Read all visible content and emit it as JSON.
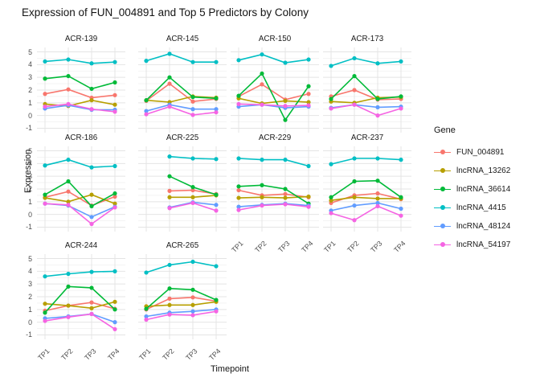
{
  "title": "Expression of FUN_004891 and Top 5 Predictors by Colony",
  "axes": {
    "x_title": "Timepoint",
    "y_title": "Expression",
    "x_tick_labels": [
      "TP1",
      "TP2",
      "TP3",
      "TP4"
    ],
    "y_tick_labels": [
      5,
      4,
      3,
      2,
      1,
      0,
      -1
    ]
  },
  "legend": {
    "title": "Gene",
    "entries": [
      {
        "label": "FUN_004891",
        "color": "#F8766D"
      },
      {
        "label": "lncRNA_13262",
        "color": "#B79F00"
      },
      {
        "label": "lncRNA_36614",
        "color": "#00BA38"
      },
      {
        "label": "lncRNA_4415",
        "color": "#00BFC4"
      },
      {
        "label": "lncRNA_48124",
        "color": "#619CFF"
      },
      {
        "label": "lncRNA_54197",
        "color": "#F564E3"
      }
    ]
  },
  "chart_data": {
    "type": "line",
    "title": "Expression of FUN_004891 and Top 5 Predictors by Colony",
    "xlabel": "Timepoint",
    "ylabel": "Expression",
    "x": [
      "TP1",
      "TP2",
      "TP3",
      "TP4"
    ],
    "ylim": [
      -1,
      5
    ],
    "grid": true,
    "legend_position": "right",
    "facet_variable": "Colony",
    "series_names": [
      "FUN_004891",
      "lncRNA_13262",
      "lncRNA_36614",
      "lncRNA_4415",
      "lncRNA_48124",
      "lncRNA_54197"
    ],
    "series_colors": [
      "#F8766D",
      "#B79F00",
      "#00BA38",
      "#00BFC4",
      "#619CFF",
      "#F564E3"
    ],
    "facets": [
      {
        "colony": "ACR-139",
        "values": [
          [
            1.7,
            2.05,
            1.4,
            1.6
          ],
          [
            0.9,
            0.75,
            1.2,
            0.85
          ],
          [
            2.9,
            3.1,
            2.1,
            2.6
          ],
          [
            4.25,
            4.4,
            4.1,
            4.2
          ],
          [
            0.55,
            0.8,
            0.45,
            0.45
          ],
          [
            0.7,
            0.9,
            0.5,
            0.3
          ]
        ]
      },
      {
        "colony": "ACR-145",
        "values": [
          [
            1.15,
            2.5,
            1.1,
            1.3
          ],
          [
            1.2,
            1.05,
            1.5,
            1.4
          ],
          [
            1.2,
            3.0,
            1.45,
            1.35
          ],
          [
            4.3,
            4.85,
            4.2,
            4.2
          ],
          [
            0.35,
            0.85,
            0.5,
            0.5
          ],
          [
            0.1,
            0.7,
            0.05,
            0.25
          ]
        ]
      },
      {
        "colony": "ACR-150",
        "values": [
          [
            1.5,
            2.45,
            1.25,
            1.7
          ],
          [
            1.35,
            0.95,
            1.15,
            1.05
          ],
          [
            1.55,
            3.3,
            -0.35,
            2.3
          ],
          [
            4.35,
            4.8,
            4.15,
            4.4
          ],
          [
            0.7,
            0.85,
            0.6,
            0.7
          ],
          [
            0.9,
            0.85,
            0.75,
            0.8
          ]
        ]
      },
      {
        "colony": "ACR-173",
        "values": [
          [
            1.5,
            2.0,
            1.25,
            1.3
          ],
          [
            1.1,
            1.0,
            1.4,
            1.45
          ],
          [
            1.3,
            3.1,
            1.3,
            1.5
          ],
          [
            3.9,
            4.5,
            4.1,
            4.25
          ],
          [
            0.6,
            0.85,
            0.65,
            0.7
          ],
          [
            0.55,
            0.85,
            0.0,
            0.55
          ]
        ]
      },
      {
        "colony": "ACR-186",
        "values": [
          [
            1.35,
            1.8,
            0.7,
            1.4
          ],
          [
            1.3,
            1.0,
            1.55,
            0.85
          ],
          [
            1.55,
            2.6,
            0.65,
            1.65
          ],
          [
            3.85,
            4.3,
            3.7,
            3.8
          ],
          [
            0.85,
            0.7,
            -0.2,
            0.6
          ],
          [
            0.85,
            0.75,
            -0.75,
            0.55
          ]
        ]
      },
      {
        "colony": "ACR-225",
        "values": [
          [
            null,
            1.85,
            1.9,
            1.6
          ],
          [
            null,
            1.35,
            1.35,
            1.5
          ],
          [
            null,
            3.0,
            2.15,
            1.55
          ],
          [
            null,
            4.55,
            4.4,
            4.35
          ],
          [
            null,
            0.55,
            0.95,
            0.75
          ],
          [
            null,
            0.5,
            0.9,
            0.3
          ]
        ]
      },
      {
        "colony": "ACR-229",
        "values": [
          [
            1.9,
            1.5,
            1.6,
            1.35
          ],
          [
            1.3,
            1.35,
            1.3,
            1.4
          ],
          [
            2.2,
            2.3,
            2.0,
            0.85
          ],
          [
            4.4,
            4.3,
            4.3,
            3.8
          ],
          [
            0.6,
            0.75,
            0.85,
            0.7
          ],
          [
            0.35,
            0.7,
            0.8,
            0.6
          ]
        ]
      },
      {
        "colony": "ACR-237",
        "values": [
          [
            0.9,
            1.5,
            1.65,
            1.2
          ],
          [
            1.1,
            1.35,
            1.25,
            1.25
          ],
          [
            1.35,
            2.6,
            2.65,
            1.35
          ],
          [
            3.95,
            4.4,
            4.4,
            4.3
          ],
          [
            0.3,
            0.7,
            0.9,
            0.45
          ],
          [
            0.1,
            -0.45,
            0.65,
            -0.1
          ]
        ]
      },
      {
        "colony": "ACR-244",
        "values": [
          [
            0.9,
            1.3,
            1.55,
            1.05
          ],
          [
            1.45,
            1.3,
            1.1,
            1.6
          ],
          [
            0.75,
            2.8,
            2.7,
            1.0
          ],
          [
            3.6,
            3.8,
            3.95,
            4.0
          ],
          [
            0.3,
            0.45,
            0.65,
            0.0
          ],
          [
            0.1,
            0.4,
            0.65,
            -0.55
          ]
        ]
      },
      {
        "colony": "ACR-265",
        "values": [
          [
            1.0,
            1.85,
            1.95,
            1.65
          ],
          [
            1.25,
            1.35,
            1.35,
            1.6
          ],
          [
            1.05,
            2.65,
            2.55,
            1.75
          ],
          [
            3.9,
            4.5,
            4.75,
            4.4
          ],
          [
            0.45,
            0.75,
            0.85,
            1.0
          ],
          [
            0.2,
            0.6,
            0.55,
            0.85
          ]
        ]
      }
    ]
  },
  "style_colors": {
    "grid_major": "#e4e4e4",
    "grid_minor": "#f2f2f2",
    "tick_text": "#4d4d4d"
  }
}
